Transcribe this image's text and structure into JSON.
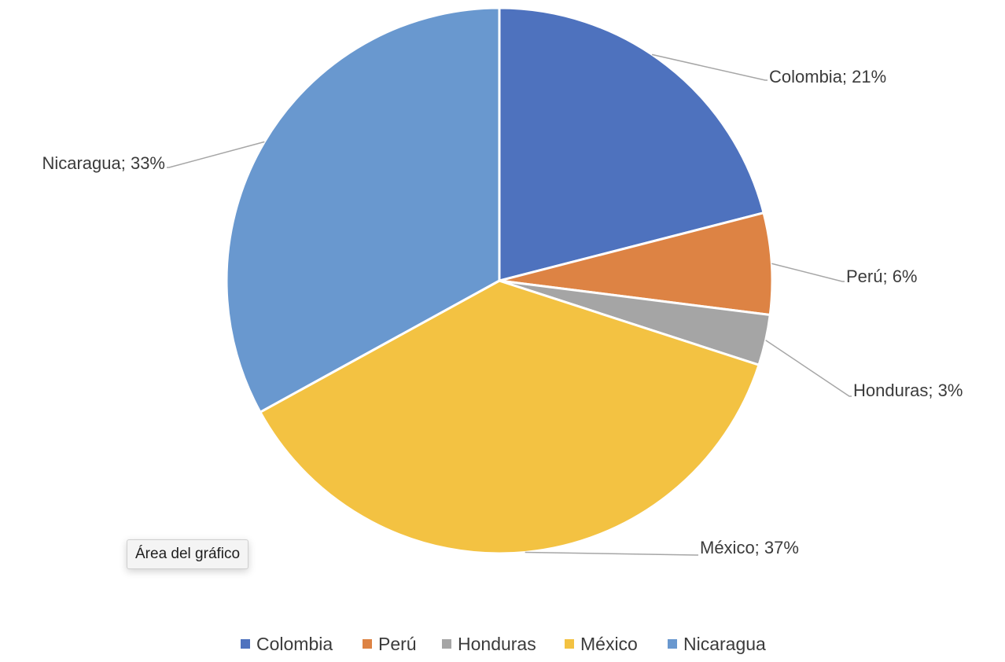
{
  "chart_data": {
    "type": "pie",
    "categories": [
      "Colombia",
      "Perú",
      "Honduras",
      "México",
      "Nicaragua"
    ],
    "values": [
      21,
      6,
      3,
      37,
      33
    ],
    "data_labels": [
      "Colombia; 21%",
      "Perú; 6%",
      "Honduras; 3%",
      "México; 37%",
      "Nicaragua; 33%"
    ],
    "colors": [
      "#4E72BE",
      "#DD8344",
      "#A5A5A5",
      "#F3C242",
      "#6998CF"
    ],
    "legend_position": "bottom",
    "title": ""
  },
  "tooltip": {
    "text": "Área del gráfico"
  }
}
